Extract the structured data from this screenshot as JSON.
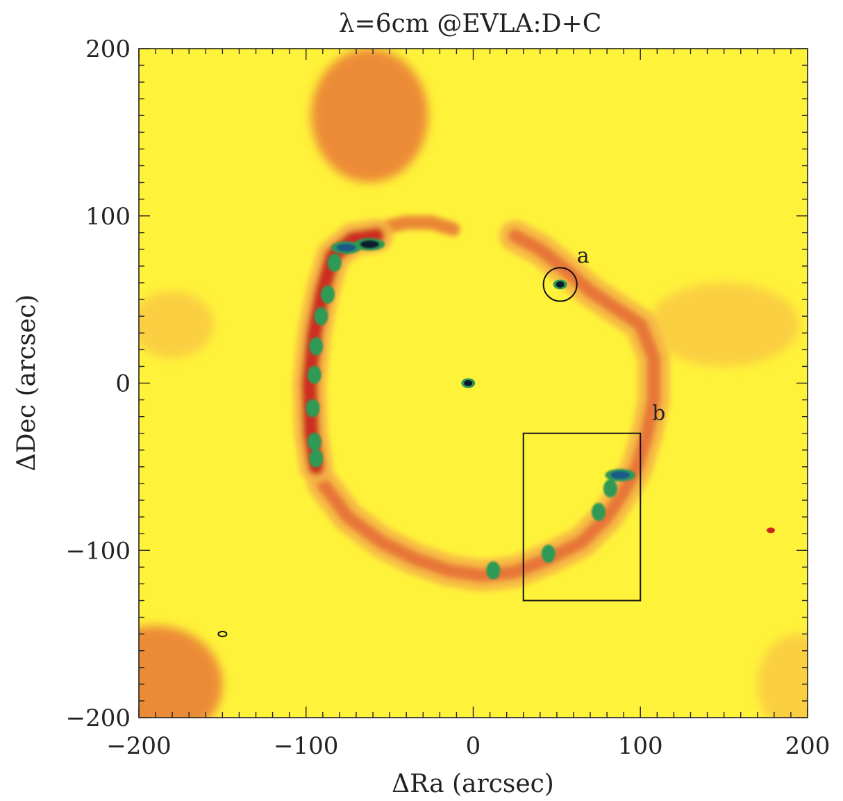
{
  "chart_data": {
    "type": "heatmap",
    "title": "λ=6cm @EVLA:D+C",
    "xlabel": "ΔRa (arcsec)",
    "ylabel": "ΔDec (arcsec)",
    "xlim": [
      -200,
      200
    ],
    "ylim": [
      -200,
      200
    ],
    "xticks": [
      -200,
      -100,
      0,
      100,
      200
    ],
    "yticks": [
      -200,
      -100,
      0,
      100,
      200
    ],
    "x_minor_step": 10,
    "y_minor_step": 10,
    "colormap": [
      "#fff23a",
      "#f6b347",
      "#e56a35",
      "#c9281e",
      "#2f9a55",
      "#1b5a86",
      "#0a1a2e"
    ],
    "background_color": "#fff23a",
    "features": {
      "left_arc": [
        [
          -58,
          88
        ],
        [
          -72,
          86
        ],
        [
          -84,
          76
        ],
        [
          -90,
          55
        ],
        [
          -95,
          30
        ],
        [
          -98,
          0
        ],
        [
          -97,
          -30
        ],
        [
          -94,
          -50
        ]
      ],
      "left_arc_peaks": [
        {
          "x": -62,
          "y": 83,
          "level": 6
        },
        {
          "x": -76,
          "y": 81,
          "level": 5
        },
        {
          "x": -83,
          "y": 72,
          "level": 4
        },
        {
          "x": -87,
          "y": 53,
          "level": 4
        },
        {
          "x": -91,
          "y": 40,
          "level": 4
        },
        {
          "x": -94,
          "y": 22,
          "level": 4
        },
        {
          "x": -95,
          "y": 5,
          "level": 4
        },
        {
          "x": -96,
          "y": -15,
          "level": 4
        },
        {
          "x": -95,
          "y": -35,
          "level": 4
        },
        {
          "x": -94,
          "y": -45,
          "level": 4
        }
      ],
      "top_arc": [
        [
          -58,
          92
        ],
        [
          -40,
          96
        ],
        [
          -25,
          96
        ],
        [
          -12,
          92
        ]
      ],
      "right_arc": [
        [
          25,
          88
        ],
        [
          40,
          80
        ],
        [
          55,
          68
        ],
        [
          70,
          55
        ],
        [
          85,
          45
        ],
        [
          100,
          35
        ],
        [
          108,
          15
        ],
        [
          108,
          -10
        ],
        [
          104,
          -30
        ],
        [
          98,
          -50
        ],
        [
          90,
          -65
        ],
        [
          80,
          -80
        ],
        [
          65,
          -95
        ],
        [
          45,
          -105
        ],
        [
          25,
          -113
        ],
        [
          5,
          -115
        ],
        [
          -15,
          -112
        ],
        [
          -35,
          -105
        ],
        [
          -55,
          -95
        ],
        [
          -75,
          -80
        ],
        [
          -90,
          -60
        ]
      ],
      "south_east_peaks": [
        {
          "x": 88,
          "y": -55,
          "level": 5
        },
        {
          "x": 82,
          "y": -63,
          "level": 4
        },
        {
          "x": 75,
          "y": -77,
          "level": 4
        },
        {
          "x": 45,
          "y": -102,
          "level": 4
        },
        {
          "x": 12,
          "y": -112,
          "level": 4
        }
      ],
      "point_sources": [
        {
          "x": -3,
          "y": 0,
          "level": 6
        },
        {
          "x": 52,
          "y": 59,
          "level": 6
        },
        {
          "x": 178,
          "y": -88,
          "level": 3
        }
      ],
      "diffuse_patches": [
        {
          "x": -62,
          "y": 160,
          "rx": 35,
          "ry": 40,
          "level": 2
        },
        {
          "x": -190,
          "y": -180,
          "rx": 40,
          "ry": 35,
          "level": 2
        },
        {
          "x": 195,
          "y": -180,
          "rx": 25,
          "ry": 30,
          "level": 1
        },
        {
          "x": -180,
          "y": 35,
          "rx": 25,
          "ry": 20,
          "level": 1
        },
        {
          "x": 150,
          "y": 35,
          "rx": 45,
          "ry": 25,
          "level": 1
        }
      ],
      "beam_ellipse": {
        "x": -150,
        "y": -150,
        "rx": 2.5,
        "ry": 1.5
      }
    },
    "annotations": [
      {
        "label": "a",
        "shape": "circle",
        "cx": 52,
        "cy": 59,
        "r": 10,
        "label_x": 62,
        "label_y": 72
      },
      {
        "label": "b",
        "shape": "rectangle",
        "x0": 30,
        "x1": 100,
        "y0": -130,
        "y1": -30,
        "label_x": 107,
        "label_y": -22
      }
    ]
  }
}
